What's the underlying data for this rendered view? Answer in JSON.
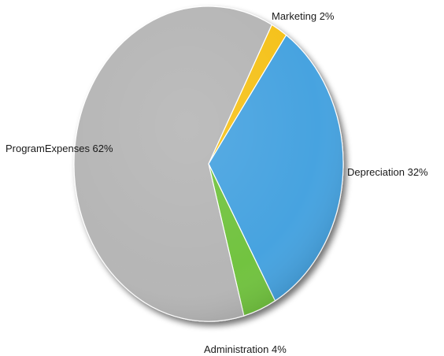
{
  "chart_data": {
    "type": "pie",
    "title": "",
    "slices": [
      {
        "label": "Marketing",
        "value": 2,
        "label_text": "Marketing 2%",
        "color": "#f5c21c"
      },
      {
        "label": "Depreciation",
        "value": 32,
        "label_text": "Depreciation 32%",
        "color": "#46a3e0"
      },
      {
        "label": "Administration",
        "value": 4,
        "label_text": "Administration  4%",
        "color": "#72c341"
      },
      {
        "label": "ProgramExpenses",
        "value": 62,
        "label_text": "ProgramExpenses 62%",
        "color": "#b6b6b6"
      }
    ],
    "start_angle_deg": -62,
    "direction": "clockwise",
    "style": "3d-shaded"
  }
}
